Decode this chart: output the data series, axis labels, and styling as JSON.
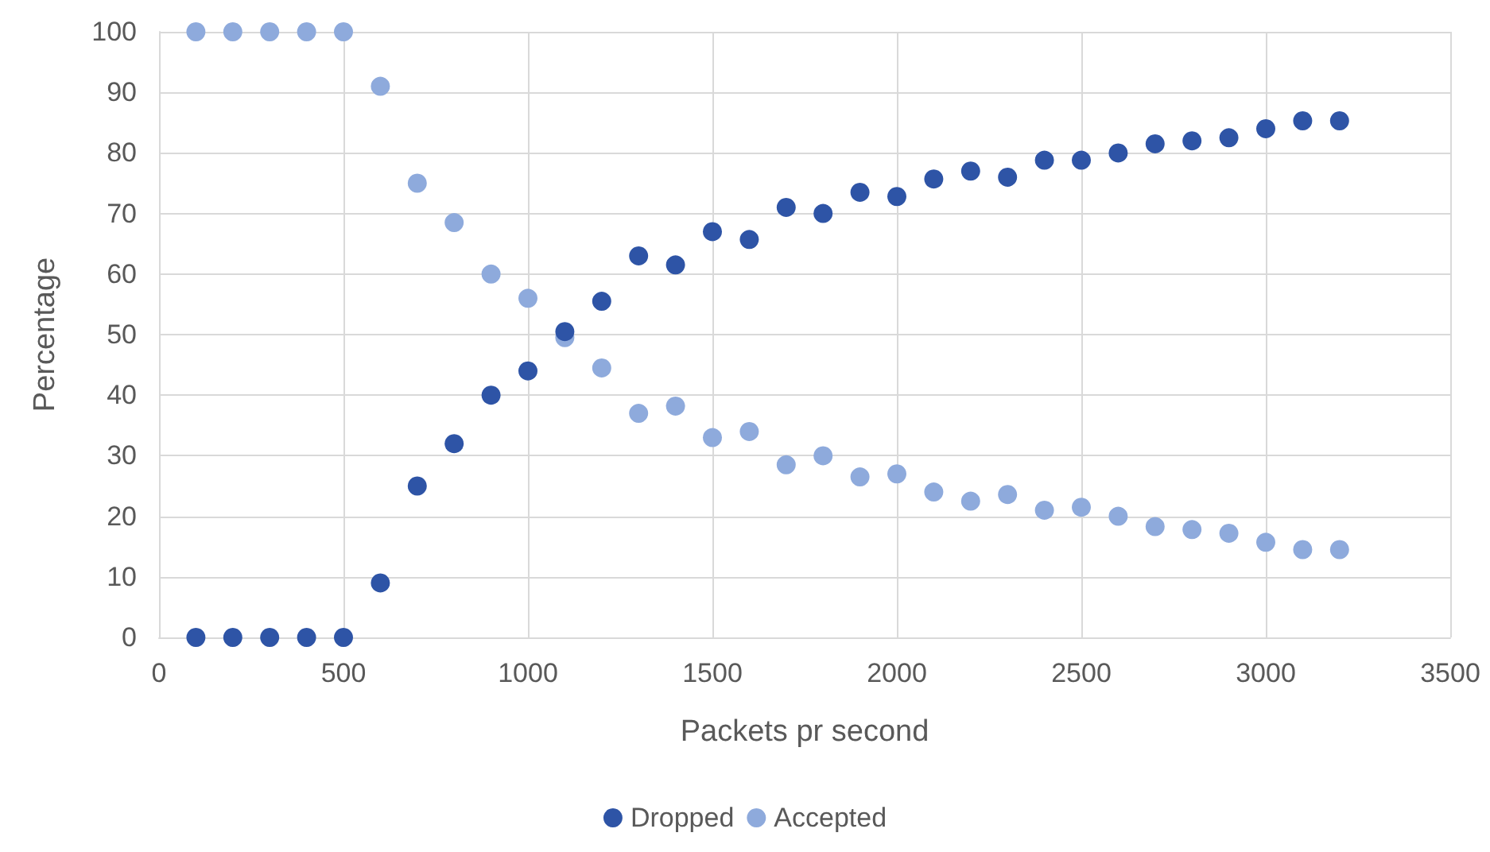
{
  "chart_data": {
    "type": "scatter",
    "xlabel": "Packets pr second",
    "ylabel": "Percentage",
    "x": [
      100,
      200,
      300,
      400,
      500,
      600,
      700,
      800,
      900,
      1000,
      1100,
      1200,
      1300,
      1400,
      1500,
      1600,
      1700,
      1800,
      1900,
      2000,
      2100,
      2200,
      2300,
      2400,
      2500,
      2600,
      2700,
      2800,
      2900,
      3000,
      3100,
      3200
    ],
    "series": [
      {
        "name": "Dropped",
        "color": "#2e54a6",
        "values": [
          0,
          0,
          0,
          0,
          0,
          9,
          25,
          32,
          40,
          44,
          50.5,
          55.5,
          63,
          61.5,
          67,
          65.7,
          71,
          70,
          73.5,
          72.8,
          75.7,
          77,
          76,
          78.8,
          78.8,
          80,
          81.5,
          82,
          82.5,
          84,
          85.3,
          85.3
        ]
      },
      {
        "name": "Accepted",
        "color": "#8eaadc",
        "values": [
          100,
          100,
          100,
          100,
          100,
          91,
          75,
          68.5,
          60,
          56,
          49.5,
          44.5,
          37,
          38.2,
          33,
          34,
          28.5,
          30,
          26.5,
          27,
          24,
          22.5,
          23.6,
          21,
          21.5,
          20,
          18.3,
          17.8,
          17.2,
          15.7,
          14.5,
          14.5
        ]
      }
    ],
    "xlim": [
      0,
      3500
    ],
    "xticks": [
      0,
      500,
      1000,
      1500,
      2000,
      2500,
      3000,
      3500
    ],
    "ylim": [
      0,
      100
    ],
    "yticks": [
      0,
      10,
      20,
      30,
      40,
      50,
      60,
      70,
      80,
      90,
      100
    ],
    "grid": true,
    "legend": "bottom",
    "marker": "circle"
  }
}
